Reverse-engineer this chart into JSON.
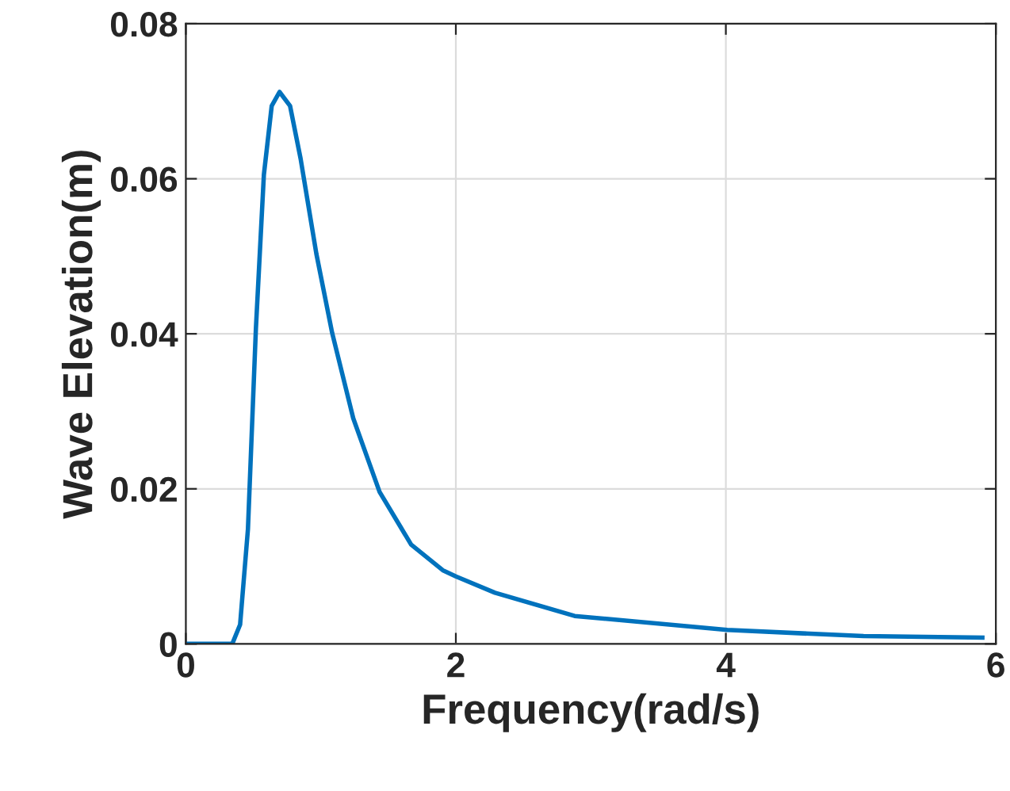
{
  "chart_data": {
    "type": "line",
    "xlabel": "Frequency(rad/s)",
    "ylabel": "Wave Elevation(m)",
    "x": [
      0,
      0.344,
      0.402,
      0.46,
      0.519,
      0.578,
      0.636,
      0.694,
      0.772,
      0.85,
      0.967,
      1.084,
      1.24,
      1.435,
      1.669,
      1.903,
      2.0,
      2.29,
      2.88,
      4.01,
      5.02,
      5.9
    ],
    "series": [
      {
        "color": "#0072bd",
        "values": [
          0,
          0,
          0.0025,
          0.0148,
          0.0407,
          0.0605,
          0.0694,
          0.0712,
          0.0694,
          0.0626,
          0.0503,
          0.0401,
          0.0291,
          0.0196,
          0.0128,
          0.0095,
          0.0087,
          0.0066,
          0.0036,
          0.0018,
          0.001,
          0.0008
        ]
      }
    ],
    "xlim": [
      0,
      6
    ],
    "xticks": [
      0,
      2,
      4,
      6
    ],
    "ylim": [
      0,
      0.08
    ],
    "yticks": [
      0,
      0.02,
      0.04,
      0.06,
      0.08
    ],
    "grid": true,
    "marker": "none",
    "line_style": "solid"
  }
}
